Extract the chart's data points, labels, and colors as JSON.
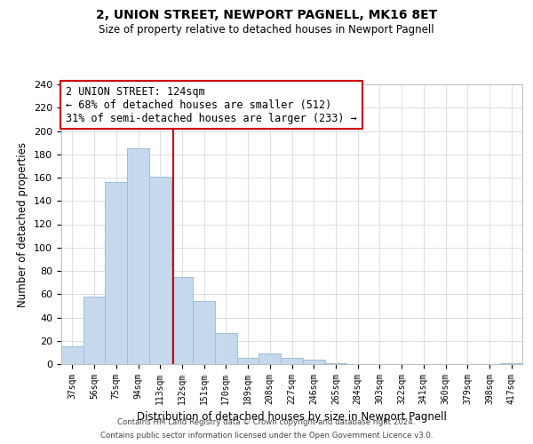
{
  "title": "2, UNION STREET, NEWPORT PAGNELL, MK16 8ET",
  "subtitle": "Size of property relative to detached houses in Newport Pagnell",
  "bar_labels": [
    "37sqm",
    "56sqm",
    "75sqm",
    "94sqm",
    "113sqm",
    "132sqm",
    "151sqm",
    "170sqm",
    "189sqm",
    "208sqm",
    "227sqm",
    "246sqm",
    "265sqm",
    "284sqm",
    "303sqm",
    "322sqm",
    "341sqm",
    "360sqm",
    "379sqm",
    "398sqm",
    "417sqm"
  ],
  "bar_values": [
    15,
    58,
    156,
    185,
    161,
    75,
    54,
    27,
    5,
    9,
    5,
    4,
    1,
    0,
    0,
    0,
    0,
    0,
    0,
    0,
    1
  ],
  "bar_color": "#c6d9ec",
  "bar_edge_color": "#a0bdd4",
  "ylabel": "Number of detached properties",
  "xlabel": "Distribution of detached houses by size in Newport Pagnell",
  "ylim": [
    0,
    240
  ],
  "yticks": [
    0,
    20,
    40,
    60,
    80,
    100,
    120,
    140,
    160,
    180,
    200,
    220,
    240
  ],
  "vline_x": 4.58,
  "vline_color": "#cc0000",
  "annotation_title": "2 UNION STREET: 124sqm",
  "annotation_line1": "← 68% of detached houses are smaller (512)",
  "annotation_line2": "31% of semi-detached houses are larger (233) →",
  "annotation_box_color": "#ffffff",
  "annotation_box_edge": "#cc0000",
  "footer_line1": "Contains HM Land Registry data © Crown copyright and database right 2024.",
  "footer_line2": "Contains public sector information licensed under the Open Government Licence v3.0.",
  "background_color": "#ffffff",
  "grid_color": "#d8d8d8"
}
